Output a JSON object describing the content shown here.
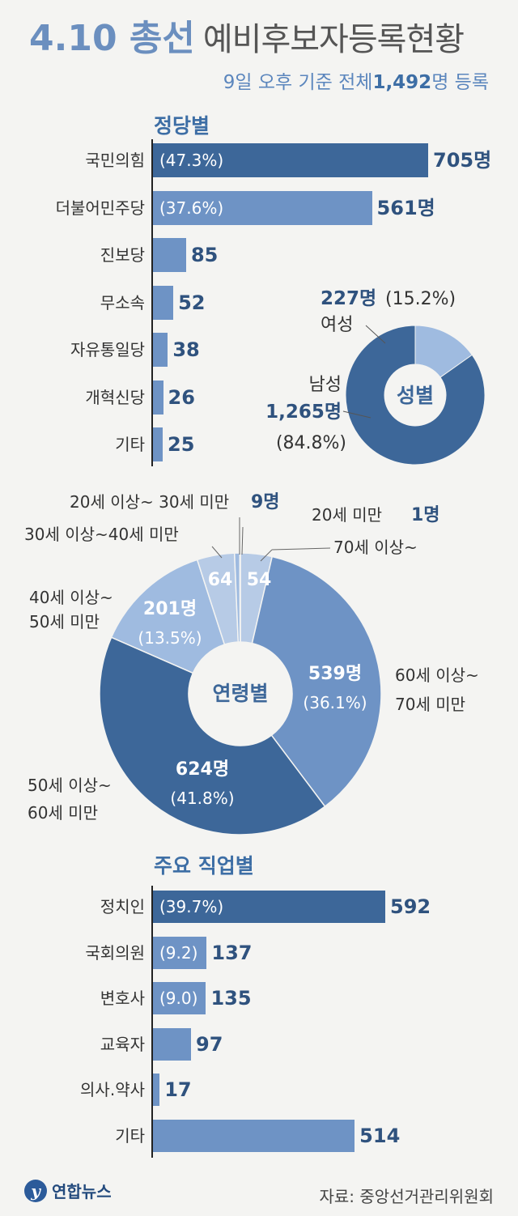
{
  "header": {
    "title_main": "4.10 총선",
    "title_rest": "예비후보자등록현황",
    "subtitle_pre": "9일 오후 기준 전체",
    "subtitle_total": "1,492",
    "subtitle_post": "명 등록"
  },
  "colors": {
    "dark": "#3d6799",
    "mid": "#6e93c5",
    "light": "#9fbbe0",
    "lighter": "#b7cbe6",
    "label_dark": "#2f527e"
  },
  "party_section": {
    "title": "정당별"
  },
  "gender_section": {
    "title": "성별"
  },
  "age_section": {
    "title": "연령별"
  },
  "job_section": {
    "title": "주요 직업별"
  },
  "source": "자료: 중앙선거관리위원회",
  "logo": {
    "mark": "y",
    "text": "연합뉴스"
  },
  "chart_data": [
    {
      "type": "bar",
      "orientation": "horizontal",
      "title": "정당별",
      "categories": [
        "국민의힘",
        "더불어민주당",
        "진보당",
        "무소속",
        "자유통일당",
        "개혁신당",
        "기타"
      ],
      "values": [
        705,
        561,
        85,
        52,
        38,
        26,
        25
      ],
      "value_labels": [
        "705명",
        "561명",
        "85",
        "52",
        "38",
        "26",
        "25"
      ],
      "inner_labels": [
        "(47.3%)",
        "(37.6%)",
        "",
        "",
        "",
        "",
        ""
      ]
    },
    {
      "type": "pie",
      "donut": true,
      "title": "성별",
      "categories": [
        "여성",
        "남성"
      ],
      "values": [
        227,
        1265
      ],
      "percent_labels": [
        "(15.2%)",
        "(84.8%)"
      ],
      "value_labels": [
        "227명",
        "1,265명"
      ]
    },
    {
      "type": "pie",
      "donut": true,
      "title": "연령별",
      "categories": [
        "20세 미만",
        "20세 이상~ 30세 미만",
        "30세 이상~40세 미만",
        "40세 이상~ 50세 미만",
        "50세 이상~ 60세 미만",
        "60세 이상~ 70세 미만",
        "70세 이상~"
      ],
      "values": [
        1,
        9,
        64,
        201,
        624,
        539,
        54
      ],
      "value_labels": [
        "1명",
        "9명",
        "64",
        "201명",
        "624명",
        "539명",
        "54"
      ],
      "percent_labels": [
        "",
        "",
        "",
        "(13.5%)",
        "(41.8%)",
        "(36.1%)",
        ""
      ]
    },
    {
      "type": "bar",
      "orientation": "horizontal",
      "title": "주요 직업별",
      "categories": [
        "정치인",
        "국회의원",
        "변호사",
        "교육자",
        "의사.약사",
        "기타"
      ],
      "values": [
        592,
        137,
        135,
        97,
        17,
        514
      ],
      "value_labels": [
        "592",
        "137",
        "135",
        "97",
        "17",
        "514"
      ],
      "inner_labels": [
        "(39.7%)",
        "(9.2)",
        "(9.0)",
        "",
        "",
        ""
      ]
    }
  ]
}
